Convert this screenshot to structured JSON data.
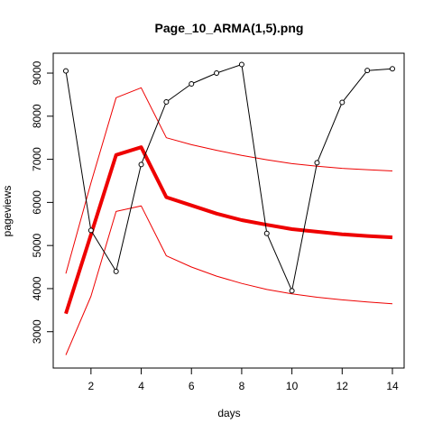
{
  "chart_data": {
    "type": "line",
    "title": "Page_10_ARMA(1,5).png",
    "xlabel": "days",
    "ylabel": "pageviews",
    "xlim": [
      1,
      14
    ],
    "ylim": [
      2450,
      9210
    ],
    "x_ticks": [
      2,
      4,
      6,
      8,
      10,
      12,
      14
    ],
    "y_ticks": [
      3000,
      4000,
      5000,
      6000,
      7000,
      8000,
      9000
    ],
    "grid": false,
    "legend": "none",
    "series": [
      {
        "key": "observed",
        "color": "#000000",
        "markers": true,
        "x": [
          1,
          2,
          3,
          4,
          5,
          6,
          7,
          8,
          9,
          10,
          11,
          12,
          13,
          14
        ],
        "values": [
          9050,
          5350,
          4400,
          6880,
          8330,
          8750,
          9000,
          9200,
          5280,
          3950,
          6920,
          8320,
          9060,
          9100
        ]
      },
      {
        "key": "forecast",
        "color": "#ee0000",
        "markers": false,
        "x": [
          1,
          2,
          3,
          4,
          5,
          6,
          7,
          8,
          9,
          10,
          11,
          12,
          13,
          14
        ],
        "values": [
          3420,
          5250,
          7100,
          7280,
          6120,
          5930,
          5740,
          5590,
          5480,
          5380,
          5320,
          5260,
          5220,
          5190
        ]
      },
      {
        "key": "upper",
        "color": "#ee0000",
        "markers": false,
        "x": [
          1,
          2,
          3,
          4,
          5,
          6,
          7,
          8,
          9,
          10,
          11,
          12,
          13,
          14
        ],
        "values": [
          4350,
          6450,
          8430,
          8660,
          7500,
          7340,
          7210,
          7090,
          6990,
          6900,
          6840,
          6790,
          6760,
          6730
        ]
      },
      {
        "key": "lower",
        "color": "#ee0000",
        "markers": false,
        "x": [
          1,
          2,
          3,
          4,
          5,
          6,
          7,
          8,
          9,
          10,
          11,
          12,
          13,
          14
        ],
        "values": [
          2460,
          3820,
          5790,
          5920,
          4760,
          4500,
          4290,
          4120,
          3980,
          3880,
          3800,
          3740,
          3690,
          3650
        ]
      }
    ]
  }
}
